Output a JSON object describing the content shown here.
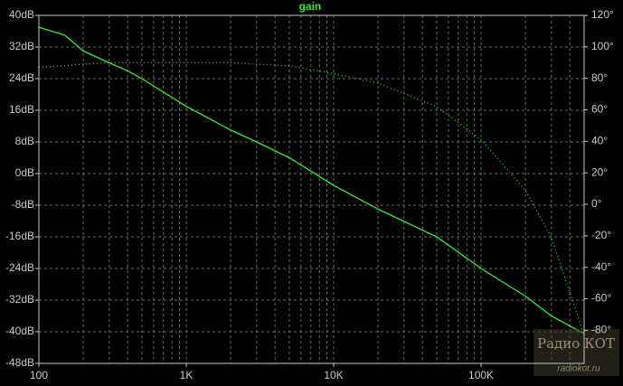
{
  "chart_data": {
    "type": "line",
    "title": "gain",
    "xlog": true,
    "xminor": true,
    "grid": true,
    "xlim": [
      100,
      500000
    ],
    "xticks": [
      {
        "value": 100,
        "label": "100"
      },
      {
        "value": 1000,
        "label": "1K"
      },
      {
        "value": 10000,
        "label": "10K"
      },
      {
        "value": 100000,
        "label": "100K"
      }
    ],
    "ylim": [
      -48,
      40
    ],
    "yticks": [
      {
        "value": 40,
        "label": "40dB"
      },
      {
        "value": 32,
        "label": "32dB"
      },
      {
        "value": 24,
        "label": "24dB"
      },
      {
        "value": 16,
        "label": "16dB"
      },
      {
        "value": 8,
        "label": "8dB"
      },
      {
        "value": 0,
        "label": "0dB"
      },
      {
        "value": -8,
        "label": "-8dB"
      },
      {
        "value": -16,
        "label": "-16dB"
      },
      {
        "value": -24,
        "label": "-24dB"
      },
      {
        "value": -32,
        "label": "-32dB"
      },
      {
        "value": -40,
        "label": "-40dB"
      },
      {
        "value": -48,
        "label": "-48dB"
      }
    ],
    "y2lim": [
      -101,
      120
    ],
    "y2ticks": [
      {
        "value": 120,
        "label": "120°"
      },
      {
        "value": 100,
        "label": "100°"
      },
      {
        "value": 80,
        "label": "80°"
      },
      {
        "value": 60,
        "label": "60°"
      },
      {
        "value": 40,
        "label": "40°"
      },
      {
        "value": 20,
        "label": "20°"
      },
      {
        "value": 0,
        "label": "0°"
      },
      {
        "value": -20,
        "label": "-20°"
      },
      {
        "value": -40,
        "label": "-40°"
      },
      {
        "value": -60,
        "label": "-60°"
      },
      {
        "value": -80,
        "label": "-80°"
      }
    ],
    "x": [
      100,
      150,
      200,
      300,
      400,
      500,
      1000,
      2000,
      3000,
      5000,
      10000,
      20000,
      50000,
      100000,
      200000,
      300000,
      500000
    ],
    "series": [
      {
        "name": "gain",
        "color": "#33ee33",
        "style": "solid",
        "values": [
          37,
          35,
          31,
          28,
          26,
          24,
          17,
          11,
          8,
          4,
          -3,
          -9,
          -16,
          -24,
          -31,
          -36,
          -40.5
        ]
      },
      {
        "name": "phase",
        "color": "#33ee33",
        "style": "dotted",
        "axis": "y2",
        "values": [
          87,
          88,
          89,
          90,
          90,
          90,
          90,
          90,
          89,
          88,
          83,
          77,
          62,
          41,
          9,
          -21,
          -83
        ]
      }
    ],
    "watermark": {
      "logo": "Радио КОТ",
      "url": "radiokot.ru"
    }
  }
}
